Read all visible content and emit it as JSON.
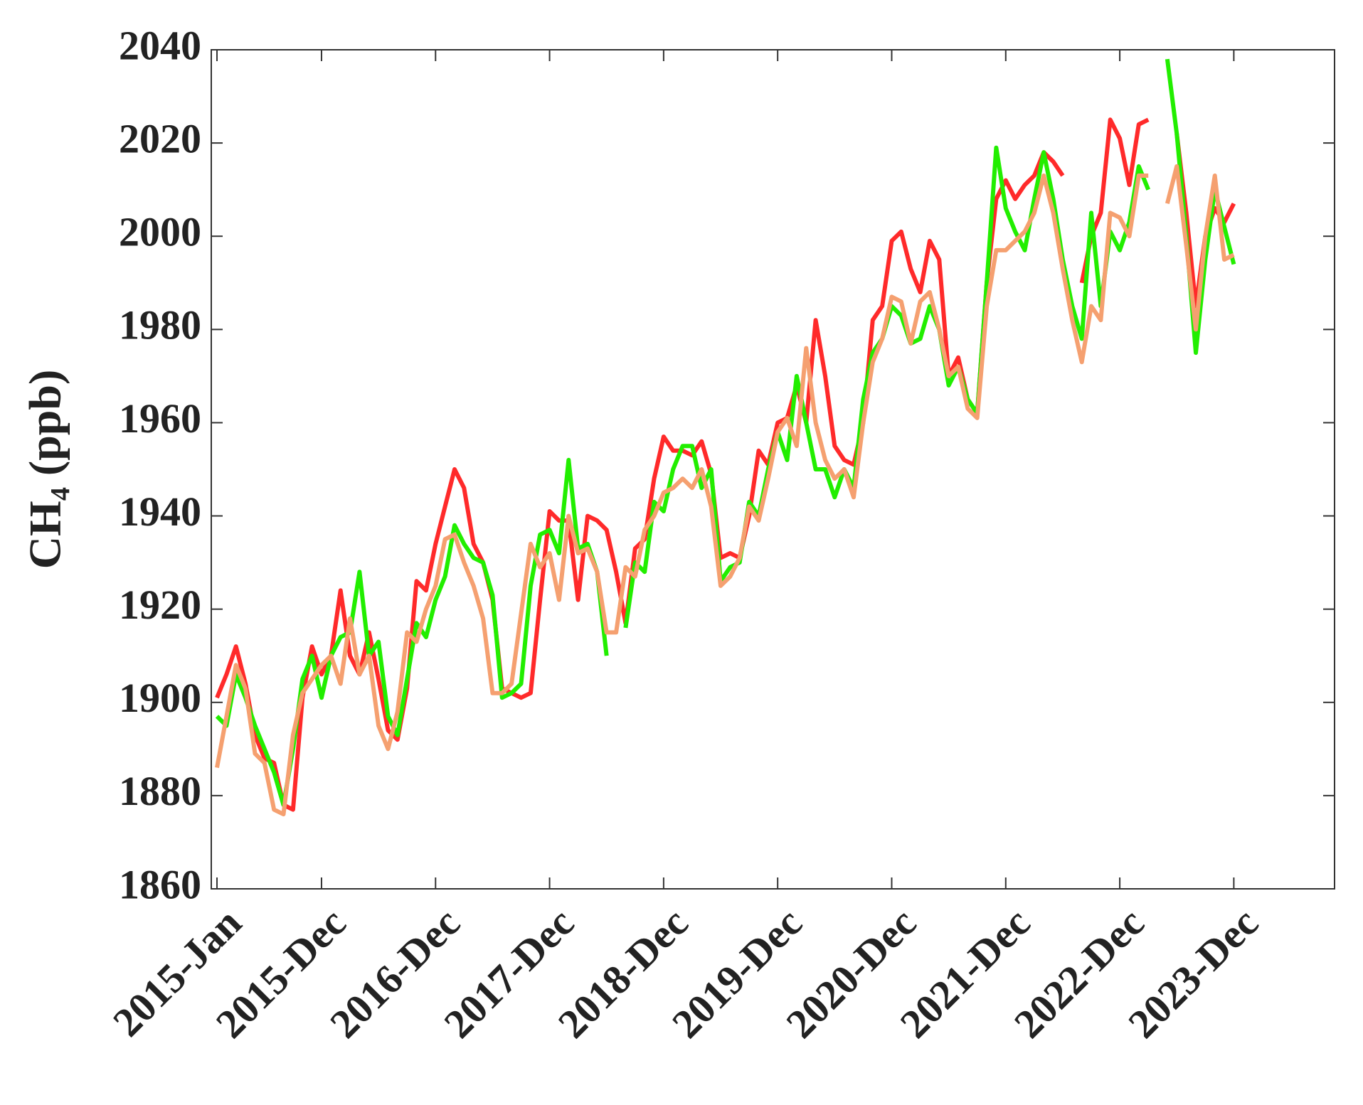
{
  "chart_data": {
    "type": "line",
    "ylabel": "CH₄ (ppb)",
    "categories": [
      "2015-Jan",
      null,
      null,
      null,
      null,
      null,
      null,
      null,
      null,
      null,
      null,
      "2015-Dec",
      null,
      null,
      null,
      null,
      null,
      null,
      null,
      null,
      null,
      null,
      null,
      "2016-Dec",
      null,
      null,
      null,
      null,
      null,
      null,
      null,
      null,
      null,
      null,
      null,
      "2017-Dec",
      null,
      null,
      null,
      null,
      null,
      null,
      null,
      null,
      null,
      null,
      null,
      "2018-Dec",
      null,
      null,
      null,
      null,
      null,
      null,
      null,
      null,
      null,
      null,
      null,
      "2019-Dec",
      null,
      null,
      null,
      null,
      null,
      null,
      null,
      null,
      null,
      null,
      null,
      "2020-Dec",
      null,
      null,
      null,
      null,
      null,
      null,
      null,
      null,
      null,
      null,
      null,
      "2021-Dec",
      null,
      null,
      null,
      null,
      null,
      null,
      null,
      null,
      null,
      null,
      null,
      "2022-Dec",
      null,
      null,
      null,
      null,
      null,
      null,
      null,
      null,
      null,
      null,
      null,
      "2023-Dec"
    ],
    "xlim": [
      -0.6,
      117.6
    ],
    "ylim": [
      1860,
      2040
    ],
    "yticks": [
      1860,
      1880,
      1900,
      1920,
      1940,
      1960,
      1980,
      2000,
      2020,
      2040
    ],
    "series": [
      {
        "color": "#ff2a2a",
        "values": [
          1901,
          1906,
          1912,
          1904,
          1893,
          1888,
          1887,
          1878,
          1877,
          1901,
          1912,
          1906,
          1910,
          1924,
          1910,
          1906,
          1915,
          1905,
          1894,
          1892,
          1903,
          1926,
          1924,
          1934,
          1942,
          1950,
          1946,
          1934,
          1930,
          1922,
          1903,
          1902,
          1901,
          1902,
          1922,
          1941,
          1939,
          1939,
          1922,
          1940,
          1939,
          1937,
          1928,
          1917,
          1933,
          1935,
          1948,
          1957,
          1954,
          1954,
          1953,
          1956,
          1949,
          1931,
          1932,
          1931,
          1940,
          1954,
          1951,
          1960,
          1961,
          1968,
          1960,
          1982,
          1970,
          1955,
          1952,
          1951,
          1960,
          1982,
          1985,
          1999,
          2001,
          1993,
          1988,
          1999,
          1995,
          1970,
          1974,
          1965,
          1962,
          1990,
          2008,
          2012,
          2008,
          2011,
          2013,
          2018,
          2016,
          2013,
          null,
          1990,
          2000,
          2005,
          2025,
          2021,
          2011,
          2024,
          2025,
          null,
          null,
          2022,
          2005,
          1985,
          2000,
          2006,
          2003,
          2007
        ]
      },
      {
        "color": "#22ee00",
        "values": [
          1897,
          1895,
          1906,
          1901,
          1895,
          1890,
          1885,
          1878,
          1890,
          1905,
          1910,
          1901,
          1910,
          1914,
          1915,
          1928,
          1910,
          1913,
          1897,
          1893,
          1905,
          1917,
          1914,
          1922,
          1927,
          1938,
          1934,
          1931,
          1930,
          1923,
          1901,
          1902,
          1904,
          1925,
          1936,
          1937,
          1932,
          1952,
          1933,
          1934,
          1928,
          1910,
          null,
          1916,
          1930,
          1928,
          1943,
          1941,
          1950,
          1955,
          1955,
          1946,
          1950,
          1926,
          1929,
          1930,
          1943,
          1940,
          1950,
          1958,
          1952,
          1970,
          1960,
          1950,
          1950,
          1944,
          1950,
          1946,
          1965,
          1975,
          1978,
          1985,
          1983,
          1977,
          1978,
          1985,
          1980,
          1968,
          1972,
          1965,
          1962,
          1990,
          2019,
          2006,
          2001,
          1997,
          2008,
          2018,
          2008,
          1995,
          1985,
          1978,
          2005,
          1985,
          2001,
          1997,
          2003,
          2015,
          2010,
          null,
          2038,
          2022,
          2000,
          1975,
          1995,
          2010,
          2002,
          1994
        ]
      },
      {
        "color": "#f5a070",
        "values": [
          1886,
          1897,
          1908,
          1903,
          1889,
          1887,
          1877,
          1876,
          1893,
          1902,
          1905,
          1908,
          1910,
          1904,
          1918,
          1906,
          1910,
          1895,
          1890,
          1898,
          1915,
          1913,
          1920,
          1925,
          1935,
          1936,
          1930,
          1925,
          1918,
          1902,
          1902,
          1904,
          1919,
          1934,
          1929,
          1932,
          1922,
          1940,
          1932,
          1933,
          1928,
          1915,
          1915,
          1929,
          1927,
          1937,
          1940,
          1945,
          1946,
          1948,
          1946,
          1950,
          1942,
          1925,
          1927,
          1931,
          1942,
          1939,
          1948,
          1958,
          1961,
          1955,
          1976,
          1960,
          1952,
          1948,
          1950,
          1944,
          1960,
          1973,
          1978,
          1987,
          1986,
          1977,
          1986,
          1988,
          1980,
          1970,
          1972,
          1963,
          1961,
          1985,
          1997,
          1997,
          1999,
          2001,
          2005,
          2013,
          2005,
          1993,
          1982,
          1973,
          1985,
          1982,
          2005,
          2004,
          2000,
          2013,
          2013,
          null,
          2007,
          2015,
          1998,
          1980,
          2000,
          2013,
          1995,
          1996
        ]
      }
    ]
  }
}
